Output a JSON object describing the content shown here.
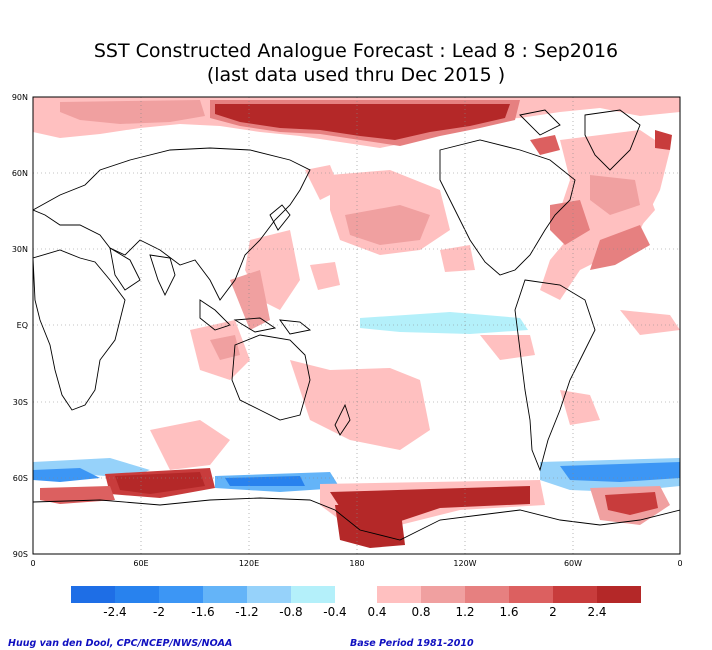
{
  "title_line1": "SST Constructed Analogue Forecast : Lead 8 : Sep2016",
  "title_line2": "(last data used thru Dec 2015 )",
  "map": {
    "lat_labels": [
      "90N",
      "60N",
      "30N",
      "EQ",
      "30S",
      "60S",
      "90S"
    ],
    "lon_labels": [
      "0",
      "60E",
      "120E",
      "180",
      "120W",
      "60W",
      "0"
    ],
    "gridlines": "dotted"
  },
  "colorbar": {
    "negative_colors": [
      "#1e6ee6",
      "#2882ee",
      "#3c96f5",
      "#64b4f8",
      "#96d2fa",
      "#b4f0fa"
    ],
    "positive_colors": [
      "#ffc0c0",
      "#f0a0a0",
      "#e68080",
      "#dc6060",
      "#c83c3c",
      "#b42828"
    ],
    "negative_labels": [
      "-2.4",
      "-2",
      "-1.6",
      "-1.2",
      "-0.8",
      "-0.4"
    ],
    "positive_labels": [
      "0.4",
      "0.8",
      "1.2",
      "1.6",
      "2",
      "2.4"
    ]
  },
  "credit_left": "Huug van den Dool, CPC/NCEP/NWS/NOAA",
  "credit_right": "Base Period 1981-2010"
}
